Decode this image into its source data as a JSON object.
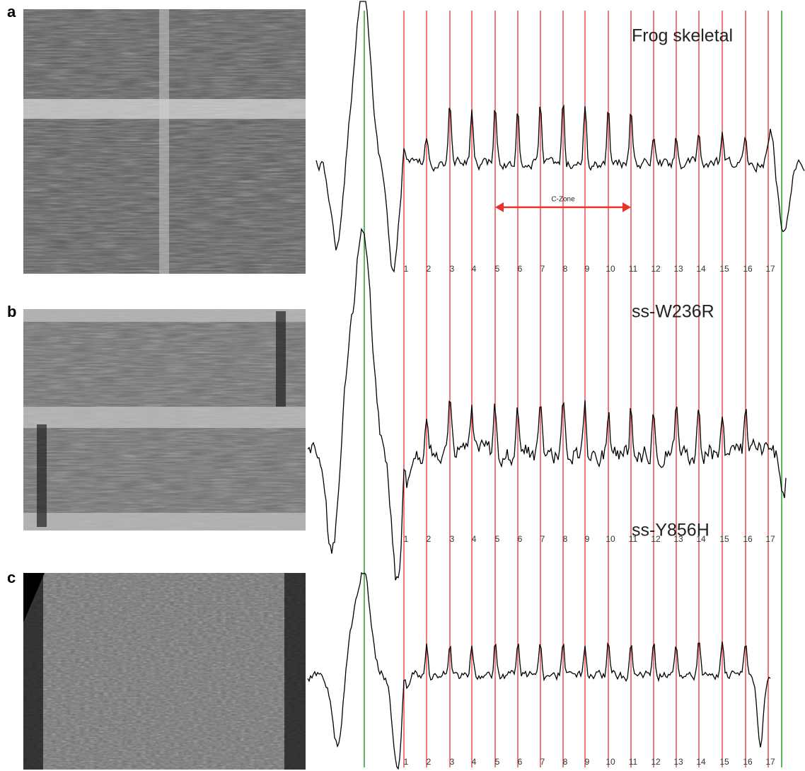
{
  "panels": [
    {
      "label": "a",
      "title": "Frog skeletal",
      "annotation": "C-Zone",
      "stripe_labels": [
        "1",
        "2",
        "3",
        "4",
        "5",
        "6",
        "7",
        "8",
        "9",
        "10",
        "11",
        "12",
        "13",
        "14",
        "15",
        "16",
        "17"
      ]
    },
    {
      "label": "b",
      "title": "ss-W236R",
      "stripe_labels": [
        "1",
        "2",
        "3",
        "4",
        "5",
        "6",
        "7",
        "8",
        "9",
        "10",
        "11",
        "12",
        "13",
        "14",
        "15",
        "16",
        "17"
      ]
    },
    {
      "label": "c",
      "title": "ss-Y856H",
      "stripe_labels": [
        "1",
        "2",
        "3",
        "4",
        "5",
        "6",
        "7",
        "8",
        "9",
        "10",
        "11",
        "12",
        "13",
        "14",
        "15",
        "16",
        "17"
      ]
    }
  ]
}
